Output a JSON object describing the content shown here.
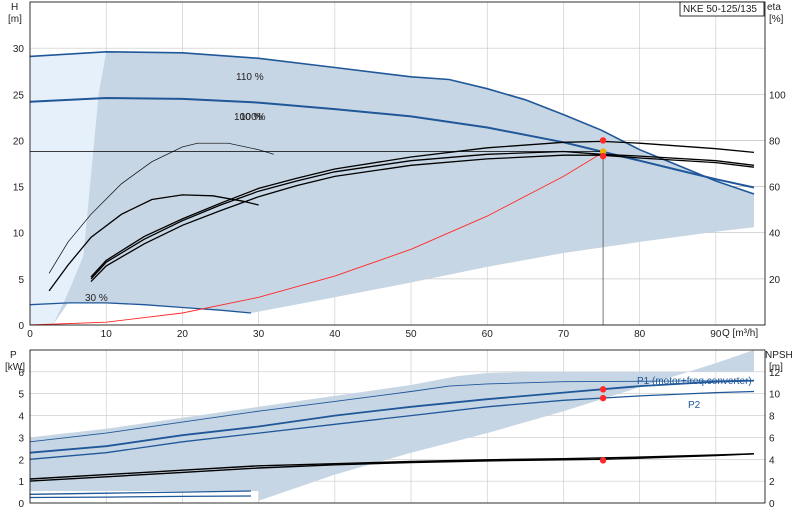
{
  "colors": {
    "band": "#c7d6e4",
    "band_light": "#e6f0fa",
    "pump_curve": "#1f5799",
    "eff_curve": "#000000",
    "system_curve": "#ff2a2a",
    "duty_point": "#ff2a2a",
    "duty_point_alt": "#f0b000",
    "grid": "#c8c8c8",
    "axis": "#000000"
  },
  "chart_data": [
    {
      "type": "line",
      "title": "NKE 50-125/135",
      "xlabel": "Q [m³/h]",
      "ylabel_left": "H",
      "ylabel_left_unit": "[m]",
      "ylabel_right": "eta",
      "ylabel_right_unit": "[%]",
      "xlim": [
        0,
        95
      ],
      "ylim_left": [
        0,
        35
      ],
      "ylim_right": [
        0,
        140
      ],
      "x_ticks": [
        0,
        10,
        20,
        30,
        40,
        50,
        60,
        70,
        80,
        90
      ],
      "y_ticks_left": [
        0,
        5,
        10,
        15,
        20,
        25,
        30
      ],
      "y_ticks_right": [
        20,
        40,
        60,
        80,
        100
      ],
      "grid": true,
      "annotations": [
        "110 %",
        "100 %",
        "100%",
        "30 %"
      ],
      "operating_range_band": {
        "upper": [
          [
            0,
            29.1
          ],
          [
            10,
            29.6
          ],
          [
            20,
            29.5
          ],
          [
            30,
            28.9
          ],
          [
            40,
            27.9
          ],
          [
            50,
            26.9
          ],
          [
            55,
            26.6
          ],
          [
            60,
            25.6
          ],
          [
            65,
            24.4
          ],
          [
            70,
            22.8
          ],
          [
            75,
            21.1
          ],
          [
            80,
            19.0
          ],
          [
            85,
            17.3
          ],
          [
            90,
            15.6
          ],
          [
            95,
            14.2
          ]
        ],
        "lower_blue": [
          [
            0,
            2.2
          ],
          [
            5,
            2.4
          ],
          [
            10,
            2.4
          ],
          [
            15,
            2.2
          ],
          [
            20,
            1.9
          ],
          [
            25,
            1.6
          ],
          [
            29,
            1.3
          ]
        ],
        "inner_left": [
          [
            3,
            0
          ],
          [
            5,
            3.5
          ],
          [
            7,
            7.5
          ],
          [
            9,
            25.0
          ],
          [
            10,
            29.6
          ]
        ],
        "lower_right": [
          [
            29,
            1.3
          ],
          [
            40,
            3.0
          ],
          [
            50,
            4.6
          ],
          [
            60,
            6.3
          ],
          [
            70,
            7.8
          ],
          [
            80,
            9.0
          ],
          [
            90,
            10.1
          ],
          [
            95,
            10.6
          ]
        ]
      },
      "series": [
        {
          "name": "110 %",
          "role": "head",
          "values": [
            [
              0,
              29.1
            ],
            [
              10,
              29.6
            ],
            [
              20,
              29.5
            ],
            [
              30,
              28.9
            ],
            [
              40,
              27.9
            ],
            [
              50,
              26.9
            ],
            [
              55,
              26.6
            ],
            [
              60,
              25.6
            ],
            [
              65,
              24.4
            ],
            [
              70,
              22.8
            ],
            [
              75,
              21.1
            ],
            [
              80,
              19.0
            ],
            [
              85,
              17.3
            ],
            [
              90,
              15.6
            ],
            [
              95,
              14.2
            ]
          ]
        },
        {
          "name": "100 %",
          "role": "head",
          "values": [
            [
              0,
              24.2
            ],
            [
              10,
              24.6
            ],
            [
              20,
              24.5
            ],
            [
              30,
              24.1
            ],
            [
              40,
              23.4
            ],
            [
              50,
              22.6
            ],
            [
              60,
              21.4
            ],
            [
              70,
              19.8
            ],
            [
              75,
              18.8
            ],
            [
              80,
              17.8
            ],
            [
              85,
              16.8
            ],
            [
              90,
              15.8
            ],
            [
              95,
              14.9
            ]
          ]
        },
        {
          "name": "30 %",
          "role": "head",
          "values": [
            [
              0,
              2.2
            ],
            [
              5,
              2.4
            ],
            [
              10,
              2.4
            ],
            [
              15,
              2.2
            ],
            [
              20,
              1.9
            ],
            [
              25,
              1.6
            ],
            [
              29,
              1.3
            ]
          ]
        },
        {
          "name": "system",
          "role": "system",
          "values": [
            [
              0,
              0
            ],
            [
              10,
              0.3
            ],
            [
              20,
              1.3
            ],
            [
              30,
              3.0
            ],
            [
              40,
              5.3
            ],
            [
              50,
              8.2
            ],
            [
              60,
              11.8
            ],
            [
              70,
              16.1
            ],
            [
              75,
              18.6
            ]
          ]
        },
        {
          "name": "eta-a",
          "role": "efficiency",
          "values": [
            [
              2.5,
              5.6
            ],
            [
              5,
              9.0
            ],
            [
              8,
              12.0
            ],
            [
              12,
              15.3
            ],
            [
              16,
              17.7
            ],
            [
              20,
              19.3
            ],
            [
              22,
              19.7
            ],
            [
              26,
              19.7
            ],
            [
              30,
              19.0
            ],
            [
              32,
              18.5
            ]
          ]
        },
        {
          "name": "eta-b",
          "role": "efficiency",
          "values": [
            [
              2.5,
              3.7
            ],
            [
              5,
              6.5
            ],
            [
              8,
              9.5
            ],
            [
              12,
              12.0
            ],
            [
              16,
              13.6
            ],
            [
              20,
              14.1
            ],
            [
              24,
              14.0
            ],
            [
              28,
              13.4
            ],
            [
              30,
              13.0
            ]
          ]
        },
        {
          "name": "eta-c",
          "role": "efficiency",
          "values": [
            [
              8,
              5.2
            ],
            [
              10,
              7.0
            ],
            [
              15,
              9.6
            ],
            [
              20,
              11.5
            ],
            [
              25,
              13.2
            ],
            [
              30,
              14.8
            ],
            [
              35,
              15.9
            ],
            [
              40,
              16.9
            ],
            [
              50,
              18.2
            ],
            [
              60,
              19.2
            ],
            [
              70,
              19.8
            ],
            [
              75,
              19.9
            ],
            [
              80,
              19.7
            ],
            [
              90,
              19.1
            ],
            [
              95,
              18.7
            ]
          ]
        },
        {
          "name": "eta-d",
          "role": "efficiency",
          "values": [
            [
              8,
              5.0
            ],
            [
              10,
              6.8
            ],
            [
              15,
              9.3
            ],
            [
              20,
              11.3
            ],
            [
              25,
              13.0
            ],
            [
              30,
              14.5
            ],
            [
              35,
              15.6
            ],
            [
              40,
              16.6
            ],
            [
              50,
              17.8
            ],
            [
              60,
              18.5
            ],
            [
              70,
              18.8
            ],
            [
              75,
              18.5
            ],
            [
              80,
              18.3
            ],
            [
              90,
              17.8
            ],
            [
              95,
              17.3
            ]
          ]
        },
        {
          "name": "eta-e",
          "role": "efficiency",
          "values": [
            [
              8,
              4.7
            ],
            [
              10,
              6.4
            ],
            [
              15,
              8.8
            ],
            [
              20,
              10.8
            ],
            [
              25,
              12.4
            ],
            [
              30,
              13.9
            ],
            [
              35,
              15.1
            ],
            [
              40,
              16.1
            ],
            [
              50,
              17.3
            ],
            [
              60,
              18.0
            ],
            [
              70,
              18.4
            ],
            [
              75,
              18.4
            ],
            [
              80,
              18.1
            ],
            [
              90,
              17.6
            ],
            [
              95,
              17.1
            ]
          ]
        }
      ],
      "reference_line": {
        "y": 18.8,
        "x_from": 0,
        "x_to": 75
      },
      "duty_point": {
        "x": 75.2,
        "y": 18.6,
        "vline_to_y": 0
      },
      "duty_markers": [
        [
          75.2,
          20.0
        ],
        [
          75.2,
          18.8
        ],
        [
          75.2,
          18.3
        ]
      ]
    },
    {
      "type": "line",
      "xlabel": "",
      "ylabel_left": "P",
      "ylabel_left_unit": "[kW]",
      "ylabel_right": "NPSH",
      "ylabel_right_unit": "[m]",
      "xlim": [
        0,
        95
      ],
      "ylim_left": [
        0,
        7
      ],
      "ylim_right": [
        0,
        14
      ],
      "y_ticks_left": [
        0,
        1,
        2,
        3,
        4,
        5,
        6
      ],
      "y_ticks_right": [
        0,
        2,
        4,
        6,
        8,
        10,
        12
      ],
      "grid": true,
      "operating_range_band": {
        "upper": [
          [
            0,
            3.0
          ],
          [
            10,
            3.4
          ],
          [
            20,
            3.9
          ],
          [
            30,
            4.4
          ],
          [
            40,
            4.9
          ],
          [
            50,
            5.4
          ],
          [
            56,
            5.8
          ],
          [
            60,
            5.95
          ],
          [
            65,
            6.0
          ],
          [
            95,
            6.0
          ]
        ],
        "lower_right": [
          [
            30,
            0.1
          ],
          [
            40,
            1.3
          ],
          [
            50,
            2.3
          ],
          [
            60,
            3.2
          ],
          [
            70,
            4.2
          ],
          [
            80,
            5.3
          ],
          [
            90,
            6.4
          ],
          [
            95,
            7.0
          ]
        ],
        "lower_left": [
          [
            0,
            0.55
          ],
          [
            30,
            0.55
          ],
          [
            30,
            0.1
          ]
        ]
      },
      "series": [
        {
          "name": "P1 (motor+freq.converter)",
          "role": "power",
          "values": [
            [
              0,
              2.3
            ],
            [
              10,
              2.6
            ],
            [
              20,
              3.1
            ],
            [
              30,
              3.5
            ],
            [
              40,
              4.0
            ],
            [
              50,
              4.4
            ],
            [
              60,
              4.75
            ],
            [
              70,
              5.05
            ],
            [
              75,
              5.2
            ],
            [
              80,
              5.35
            ],
            [
              90,
              5.55
            ],
            [
              95,
              5.6
            ]
          ]
        },
        {
          "name": "P1-110",
          "role": "power",
          "values": [
            [
              0,
              2.8
            ],
            [
              10,
              3.2
            ],
            [
              20,
              3.7
            ],
            [
              30,
              4.2
            ],
            [
              40,
              4.65
            ],
            [
              50,
              5.1
            ],
            [
              55,
              5.35
            ],
            [
              60,
              5.45
            ],
            [
              70,
              5.55
            ],
            [
              95,
              5.6
            ]
          ]
        },
        {
          "name": "P2",
          "role": "power",
          "values": [
            [
              0,
              2.0
            ],
            [
              10,
              2.3
            ],
            [
              20,
              2.8
            ],
            [
              30,
              3.2
            ],
            [
              40,
              3.6
            ],
            [
              50,
              4.0
            ],
            [
              60,
              4.4
            ],
            [
              70,
              4.7
            ],
            [
              75,
              4.8
            ],
            [
              80,
              4.9
            ],
            [
              90,
              5.05
            ],
            [
              95,
              5.1
            ]
          ]
        },
        {
          "name": "P-30",
          "role": "power",
          "values": [
            [
              0,
              0.4
            ],
            [
              10,
              0.45
            ],
            [
              20,
              0.5
            ],
            [
              29,
              0.55
            ]
          ]
        },
        {
          "name": "P-30b",
          "role": "power",
          "values": [
            [
              0,
              0.25
            ],
            [
              10,
              0.27
            ],
            [
              20,
              0.3
            ],
            [
              29,
              0.32
            ]
          ]
        },
        {
          "name": "NPSH-a",
          "role": "npsh",
          "values": [
            [
              0,
              2.0
            ],
            [
              10,
              2.4
            ],
            [
              20,
              2.8
            ],
            [
              30,
              3.2
            ],
            [
              40,
              3.5
            ],
            [
              50,
              3.7
            ],
            [
              60,
              3.85
            ],
            [
              70,
              3.95
            ],
            [
              75,
              4.0
            ],
            [
              80,
              4.1
            ],
            [
              90,
              4.35
            ],
            [
              95,
              4.5
            ]
          ]
        },
        {
          "name": "NPSH-b",
          "role": "npsh",
          "values": [
            [
              0,
              2.2
            ],
            [
              10,
              2.6
            ],
            [
              20,
              3.0
            ],
            [
              30,
              3.4
            ],
            [
              40,
              3.6
            ],
            [
              50,
              3.8
            ],
            [
              60,
              3.95
            ],
            [
              70,
              4.05
            ],
            [
              80,
              4.2
            ],
            [
              90,
              4.4
            ],
            [
              95,
              4.5
            ]
          ]
        }
      ],
      "duty_markers_kw": [
        [
          75.2,
          5.2
        ],
        [
          75.2,
          4.8
        ]
      ],
      "duty_markers_npsh": [
        [
          75.2,
          3.9
        ]
      ],
      "legend_labels": [
        "P1 (motor+freq.converter)",
        "P2"
      ]
    }
  ]
}
